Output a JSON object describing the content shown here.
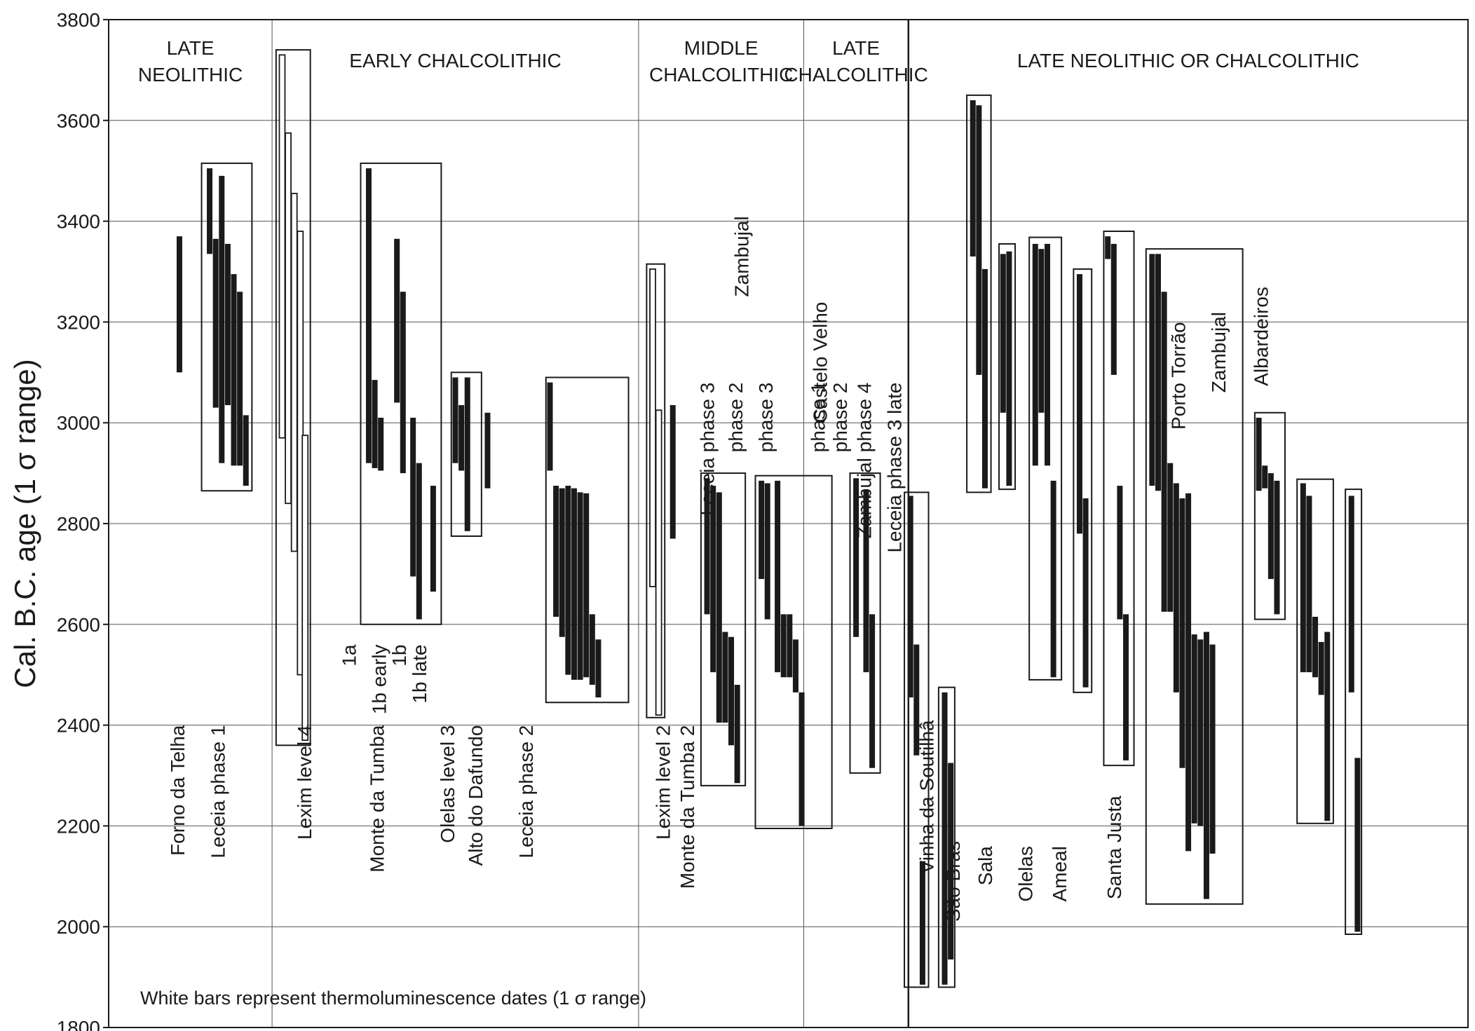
{
  "chart_data": {
    "type": "range-bar",
    "ylabel": "Cal. B.C. age (1 σ range)",
    "ylim": [
      1800,
      3800
    ],
    "y_ticks": [
      1800,
      2000,
      2200,
      2400,
      2600,
      2800,
      3000,
      3200,
      3400,
      3600,
      3800
    ],
    "y_axis_reversed": true,
    "grid": true,
    "note": "White bars represent thermoluminescence dates (1 σ range)",
    "periods": [
      {
        "label": [
          "LATE",
          "NEOLITHIC"
        ],
        "x_range": [
          0,
          3.1
        ]
      },
      {
        "label": [
          "EARLY CHALCOLITHIC"
        ],
        "x_range": [
          3.1,
          12.2
        ]
      },
      {
        "label": [
          "MIDDLE",
          "CHALCOLITHIC"
        ],
        "x_range": [
          12.2,
          16.3
        ]
      },
      {
        "label": [
          "LATE",
          "CHALCOLITHIC"
        ],
        "x_range": [
          16.3,
          18.9
        ]
      },
      {
        "label": [
          "LATE NEOLITHIC OR CHALCOLITHIC"
        ],
        "x_range": [
          18.9,
          28.6
        ]
      }
    ],
    "site_labels": [
      {
        "text": "Forno da Telha",
        "x": 0.75,
        "y": 2400
      },
      {
        "text": "Leceia phase 1",
        "x": 1.75,
        "y": 2400
      },
      {
        "text": "Lexim level 4",
        "x": 3.9,
        "y": 2400
      },
      {
        "text": "Monte da Tumba",
        "x": 5.7,
        "y": 2400
      },
      {
        "text": "Olelas level 3",
        "x": 7.45,
        "y": 2400
      },
      {
        "text": "Alto do Dafundo",
        "x": 8.15,
        "y": 2400
      },
      {
        "text": "Leceia phase 2",
        "x": 9.4,
        "y": 2400
      },
      {
        "text": "Lexim level 2",
        "x": 12.8,
        "y": 2400
      },
      {
        "text": "Monte da Tumba 2",
        "x": 13.4,
        "y": 2400
      },
      {
        "text": "Vinha da Soutilhâ",
        "x": 19.35,
        "y": 2410
      },
      {
        "text": "São Bras",
        "x": 20.0,
        "y": 2170
      },
      {
        "text": "Sala",
        "x": 20.8,
        "y": 2160
      },
      {
        "text": "Olelas",
        "x": 21.8,
        "y": 2160
      },
      {
        "text": "Ameal",
        "x": 22.65,
        "y": 2160
      },
      {
        "text": "Santa Justa",
        "x": 24.0,
        "y": 2260
      },
      {
        "text": "Porto Torrão",
        "x": 25.6,
        "y": 3200
      },
      {
        "text": "Zambujal",
        "x": 26.6,
        "y": 3220
      },
      {
        "text": "Albardeiros",
        "x": 27.65,
        "y": 3270
      },
      {
        "text": "1a",
        "x": 5.0,
        "y": 2560
      },
      {
        "text": "1b early",
        "x": 5.75,
        "y": 2560
      },
      {
        "text": "1b",
        "x": 6.25,
        "y": 2560
      },
      {
        "text": "1b  late",
        "x": 6.75,
        "y": 2560
      },
      {
        "text": "Leceia phase 3",
        "x": 13.9,
        "y": 3080
      },
      {
        "text": "Zambujal",
        "x": 14.75,
        "y": 3410
      },
      {
        "text": "phase 2",
        "x": 14.6,
        "y": 3080
      },
      {
        "text": "phase 3",
        "x": 15.35,
        "y": 3080
      },
      {
        "text": "Castelo Velho",
        "x": 16.7,
        "y": 3240
      },
      {
        "text": "phase 1",
        "x": 16.65,
        "y": 3080
      },
      {
        "text": "phase 2",
        "x": 17.2,
        "y": 3080
      },
      {
        "text": "Zambujal phase 4",
        "x": 17.8,
        "y": 3080
      },
      {
        "text": "Leceia phase 3 late",
        "x": 18.55,
        "y": 3080
      }
    ],
    "groups": [
      {
        "x_range": [
          1.35,
          2.6
        ],
        "y_range": [
          2865,
          3515
        ]
      },
      {
        "x_range": [
          3.2,
          4.05
        ],
        "y_range": [
          2360,
          3740
        ]
      },
      {
        "x_range": [
          5.3,
          7.3
        ],
        "y_range": [
          2600,
          3515
        ]
      },
      {
        "x_range": [
          7.55,
          8.3
        ],
        "y_range": [
          2775,
          3100
        ]
      },
      {
        "x_range": [
          9.9,
          11.95
        ],
        "y_range": [
          2445,
          3090
        ]
      },
      {
        "x_range": [
          12.4,
          12.85
        ],
        "y_range": [
          2415,
          3315
        ]
      },
      {
        "x_range": [
          13.75,
          14.85
        ],
        "y_range": [
          2280,
          2900
        ]
      },
      {
        "x_range": [
          15.1,
          17.0
        ],
        "y_range": [
          2195,
          2895
        ]
      },
      {
        "x_range": [
          17.45,
          18.2
        ],
        "y_range": [
          2305,
          2900
        ]
      },
      {
        "x_range": [
          18.8,
          19.4
        ],
        "y_range": [
          1880,
          2862
        ]
      },
      {
        "x_range": [
          19.65,
          20.05
        ],
        "y_range": [
          1880,
          2475
        ]
      },
      {
        "x_range": [
          20.35,
          20.95
        ],
        "y_range": [
          2862,
          3650
        ]
      },
      {
        "x_range": [
          21.15,
          21.55
        ],
        "y_range": [
          2868,
          3355
        ]
      },
      {
        "x_range": [
          21.9,
          22.7
        ],
        "y_range": [
          2490,
          3368
        ]
      },
      {
        "x_range": [
          23.0,
          23.45
        ],
        "y_range": [
          2465,
          3305
        ]
      },
      {
        "x_range": [
          23.75,
          24.5
        ],
        "y_range": [
          2320,
          3380
        ]
      },
      {
        "x_range": [
          24.8,
          27.2
        ],
        "y_range": [
          2045,
          3345
        ]
      },
      {
        "x_range": [
          27.5,
          28.25
        ],
        "y_range": [
          2610,
          3020
        ]
      },
      {
        "x_range": [
          28.55,
          29.45
        ],
        "y_range": [
          2205,
          2888
        ]
      },
      {
        "x_range": [
          29.75,
          30.15
        ],
        "y_range": [
          1985,
          2868
        ]
      }
    ],
    "bars": [
      {
        "x": 0.8,
        "low": 3100,
        "high": 3370,
        "tl": false
      },
      {
        "x": 1.55,
        "low": 3335,
        "high": 3505,
        "tl": false
      },
      {
        "x": 1.7,
        "low": 3030,
        "high": 3365,
        "tl": false
      },
      {
        "x": 1.85,
        "low": 2920,
        "high": 3490,
        "tl": false
      },
      {
        "x": 2.0,
        "low": 3035,
        "high": 3355,
        "tl": false
      },
      {
        "x": 2.15,
        "low": 2915,
        "high": 3295,
        "tl": false
      },
      {
        "x": 2.3,
        "low": 2915,
        "high": 3260,
        "tl": false
      },
      {
        "x": 2.45,
        "low": 2875,
        "high": 3015,
        "tl": false
      },
      {
        "x": 3.35,
        "low": 2970,
        "high": 3730,
        "tl": true
      },
      {
        "x": 3.5,
        "low": 2840,
        "high": 3575,
        "tl": true
      },
      {
        "x": 3.65,
        "low": 2745,
        "high": 3455,
        "tl": true
      },
      {
        "x": 3.8,
        "low": 2500,
        "high": 3380,
        "tl": true
      },
      {
        "x": 3.92,
        "low": 2370,
        "high": 2975,
        "tl": true
      },
      {
        "x": 5.5,
        "low": 2920,
        "high": 3505,
        "tl": false
      },
      {
        "x": 5.65,
        "low": 2910,
        "high": 3085,
        "tl": false
      },
      {
        "x": 5.8,
        "low": 2905,
        "high": 3010,
        "tl": false
      },
      {
        "x": 6.2,
        "low": 3040,
        "high": 3365,
        "tl": false
      },
      {
        "x": 6.35,
        "low": 2900,
        "high": 3260,
        "tl": false
      },
      {
        "x": 6.6,
        "low": 2695,
        "high": 3010,
        "tl": false
      },
      {
        "x": 6.75,
        "low": 2610,
        "high": 2920,
        "tl": false
      },
      {
        "x": 7.1,
        "low": 2665,
        "high": 2875,
        "tl": false
      },
      {
        "x": 7.65,
        "low": 2920,
        "high": 3090,
        "tl": false
      },
      {
        "x": 7.8,
        "low": 2905,
        "high": 3035,
        "tl": false
      },
      {
        "x": 7.95,
        "low": 2785,
        "high": 3090,
        "tl": false
      },
      {
        "x": 8.45,
        "low": 2870,
        "high": 3020,
        "tl": false
      },
      {
        "x": 10.0,
        "low": 2905,
        "high": 3080,
        "tl": false
      },
      {
        "x": 10.15,
        "low": 2615,
        "high": 2875,
        "tl": false
      },
      {
        "x": 10.3,
        "low": 2575,
        "high": 2870,
        "tl": false
      },
      {
        "x": 10.45,
        "low": 2500,
        "high": 2875,
        "tl": false
      },
      {
        "x": 10.6,
        "low": 2490,
        "high": 2870,
        "tl": false
      },
      {
        "x": 10.75,
        "low": 2490,
        "high": 2862,
        "tl": false
      },
      {
        "x": 10.9,
        "low": 2495,
        "high": 2860,
        "tl": false
      },
      {
        "x": 11.05,
        "low": 2480,
        "high": 2620,
        "tl": false
      },
      {
        "x": 11.2,
        "low": 2455,
        "high": 2570,
        "tl": false
      },
      {
        "x": 12.55,
        "low": 2675,
        "high": 3305,
        "tl": true
      },
      {
        "x": 12.7,
        "low": 2420,
        "high": 3025,
        "tl": true
      },
      {
        "x": 13.05,
        "low": 2770,
        "high": 3035,
        "tl": false
      },
      {
        "x": 13.9,
        "low": 2620,
        "high": 2890,
        "tl": false
      },
      {
        "x": 14.05,
        "low": 2505,
        "high": 2875,
        "tl": false
      },
      {
        "x": 14.2,
        "low": 2405,
        "high": 2862,
        "tl": false
      },
      {
        "x": 14.35,
        "low": 2405,
        "high": 2585,
        "tl": false
      },
      {
        "x": 14.5,
        "low": 2360,
        "high": 2575,
        "tl": false
      },
      {
        "x": 14.65,
        "low": 2285,
        "high": 2480,
        "tl": false
      },
      {
        "x": 15.25,
        "low": 2690,
        "high": 2885,
        "tl": false
      },
      {
        "x": 15.4,
        "low": 2610,
        "high": 2880,
        "tl": false
      },
      {
        "x": 15.65,
        "low": 2505,
        "high": 2885,
        "tl": false
      },
      {
        "x": 15.8,
        "low": 2495,
        "high": 2620,
        "tl": false
      },
      {
        "x": 15.95,
        "low": 2495,
        "high": 2620,
        "tl": false
      },
      {
        "x": 16.1,
        "low": 2465,
        "high": 2570,
        "tl": false
      },
      {
        "x": 16.25,
        "low": 2200,
        "high": 2465,
        "tl": false
      },
      {
        "x": 17.6,
        "low": 2575,
        "high": 2890,
        "tl": false
      },
      {
        "x": 17.85,
        "low": 2505,
        "high": 2865,
        "tl": false
      },
      {
        "x": 18.0,
        "low": 2315,
        "high": 2620,
        "tl": false
      },
      {
        "x": 18.95,
        "low": 2455,
        "high": 2855,
        "tl": false
      },
      {
        "x": 19.1,
        "low": 2340,
        "high": 2560,
        "tl": false
      },
      {
        "x": 19.25,
        "low": 1885,
        "high": 2130,
        "tl": false
      },
      {
        "x": 19.8,
        "low": 1885,
        "high": 2465,
        "tl": false
      },
      {
        "x": 19.95,
        "low": 1935,
        "high": 2325,
        "tl": false
      },
      {
        "x": 20.5,
        "low": 3330,
        "high": 3640,
        "tl": false
      },
      {
        "x": 20.65,
        "low": 3095,
        "high": 3630,
        "tl": false
      },
      {
        "x": 20.8,
        "low": 2870,
        "high": 3305,
        "tl": false
      },
      {
        "x": 21.25,
        "low": 3020,
        "high": 3335,
        "tl": false
      },
      {
        "x": 21.4,
        "low": 2875,
        "high": 3340,
        "tl": false
      },
      {
        "x": 22.05,
        "low": 2915,
        "high": 3355,
        "tl": false
      },
      {
        "x": 22.2,
        "low": 3020,
        "high": 3345,
        "tl": false
      },
      {
        "x": 22.35,
        "low": 2915,
        "high": 3355,
        "tl": false
      },
      {
        "x": 22.5,
        "low": 2495,
        "high": 2885,
        "tl": false
      },
      {
        "x": 23.15,
        "low": 2780,
        "high": 3295,
        "tl": false
      },
      {
        "x": 23.3,
        "low": 2475,
        "high": 2850,
        "tl": false
      },
      {
        "x": 23.85,
        "low": 3325,
        "high": 3370,
        "tl": false
      },
      {
        "x": 24.0,
        "low": 3095,
        "high": 3355,
        "tl": false
      },
      {
        "x": 24.15,
        "low": 2610,
        "high": 2875,
        "tl": false
      },
      {
        "x": 24.3,
        "low": 2330,
        "high": 2620,
        "tl": false
      },
      {
        "x": 24.95,
        "low": 2875,
        "high": 3335,
        "tl": false
      },
      {
        "x": 25.1,
        "low": 2865,
        "high": 3335,
        "tl": false
      },
      {
        "x": 25.25,
        "low": 2625,
        "high": 3260,
        "tl": false
      },
      {
        "x": 25.4,
        "low": 2625,
        "high": 2920,
        "tl": false
      },
      {
        "x": 25.55,
        "low": 2465,
        "high": 2880,
        "tl": false
      },
      {
        "x": 25.7,
        "low": 2315,
        "high": 2850,
        "tl": false
      },
      {
        "x": 25.85,
        "low": 2150,
        "high": 2860,
        "tl": false
      },
      {
        "x": 26.0,
        "low": 2205,
        "high": 2580,
        "tl": false
      },
      {
        "x": 26.15,
        "low": 2200,
        "high": 2570,
        "tl": false
      },
      {
        "x": 26.3,
        "low": 2055,
        "high": 2585,
        "tl": false
      },
      {
        "x": 26.45,
        "low": 2145,
        "high": 2560,
        "tl": false
      },
      {
        "x": 27.6,
        "low": 2865,
        "high": 3010,
        "tl": false
      },
      {
        "x": 27.75,
        "low": 2870,
        "high": 2915,
        "tl": false
      },
      {
        "x": 27.9,
        "low": 2690,
        "high": 2900,
        "tl": false
      },
      {
        "x": 28.05,
        "low": 2620,
        "high": 2885,
        "tl": false
      },
      {
        "x": 28.7,
        "low": 2505,
        "high": 2880,
        "tl": false
      },
      {
        "x": 28.85,
        "low": 2505,
        "high": 2855,
        "tl": false
      },
      {
        "x": 29.0,
        "low": 2495,
        "high": 2615,
        "tl": false
      },
      {
        "x": 29.15,
        "low": 2460,
        "high": 2565,
        "tl": false
      },
      {
        "x": 29.3,
        "low": 2210,
        "high": 2585,
        "tl": false
      },
      {
        "x": 29.9,
        "low": 2465,
        "high": 2855,
        "tl": false
      },
      {
        "x": 30.05,
        "low": 1990,
        "high": 2335,
        "tl": false
      }
    ]
  }
}
